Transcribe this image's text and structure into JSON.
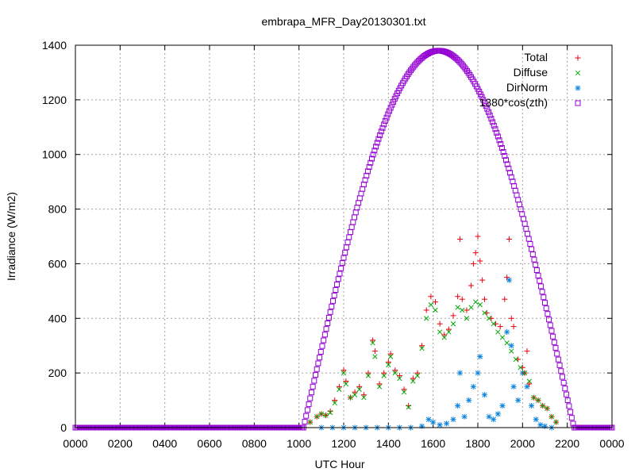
{
  "chart_data": {
    "type": "scatter",
    "title": "embrapa_MFR_Day20130301.txt",
    "xlabel": "UTC Hour",
    "ylabel": "Irradiance (W/m2)",
    "xlim": [
      0,
      24
    ],
    "ylim": [
      0,
      1400
    ],
    "grid": true,
    "legend_position": "top-right",
    "x_tick_labels": [
      "0000",
      "0200",
      "0400",
      "0600",
      "0800",
      "1000",
      "1200",
      "1400",
      "1600",
      "1800",
      "2000",
      "2200",
      "0000"
    ],
    "y_tick_labels": [
      "0",
      "200",
      "400",
      "600",
      "800",
      "1000",
      "1200",
      "1400"
    ],
    "series": [
      {
        "name": "Total",
        "marker": "plus",
        "color": "#e8000b",
        "points": [
          [
            10.5,
            20
          ],
          [
            10.8,
            40
          ],
          [
            11.0,
            50
          ],
          [
            11.2,
            45
          ],
          [
            11.4,
            60
          ],
          [
            11.6,
            100
          ],
          [
            11.8,
            150
          ],
          [
            12.0,
            210
          ],
          [
            12.1,
            170
          ],
          [
            12.3,
            110
          ],
          [
            12.5,
            130
          ],
          [
            12.7,
            150
          ],
          [
            12.9,
            120
          ],
          [
            13.1,
            200
          ],
          [
            13.3,
            320
          ],
          [
            13.4,
            280
          ],
          [
            13.6,
            160
          ],
          [
            13.8,
            200
          ],
          [
            14.0,
            240
          ],
          [
            14.1,
            270
          ],
          [
            14.3,
            210
          ],
          [
            14.5,
            190
          ],
          [
            14.7,
            140
          ],
          [
            14.9,
            80
          ],
          [
            15.1,
            180
          ],
          [
            15.3,
            200
          ],
          [
            15.5,
            300
          ],
          [
            15.7,
            430
          ],
          [
            15.9,
            480
          ],
          [
            16.1,
            460
          ],
          [
            16.3,
            380
          ],
          [
            16.5,
            340
          ],
          [
            16.7,
            360
          ],
          [
            16.9,
            410
          ],
          [
            17.1,
            480
          ],
          [
            17.2,
            690
          ],
          [
            17.3,
            470
          ],
          [
            17.5,
            430
          ],
          [
            17.7,
            520
          ],
          [
            17.8,
            600
          ],
          [
            17.9,
            640
          ],
          [
            18.0,
            700
          ],
          [
            18.1,
            610
          ],
          [
            18.2,
            540
          ],
          [
            18.3,
            470
          ],
          [
            18.4,
            420
          ],
          [
            18.6,
            400
          ],
          [
            18.8,
            380
          ],
          [
            19.0,
            370
          ],
          [
            19.2,
            470
          ],
          [
            19.3,
            550
          ],
          [
            19.4,
            690
          ],
          [
            19.5,
            400
          ],
          [
            19.6,
            370
          ],
          [
            19.8,
            250
          ],
          [
            20.0,
            220
          ],
          [
            20.1,
            200
          ],
          [
            20.2,
            280
          ],
          [
            20.3,
            160
          ],
          [
            20.5,
            110
          ],
          [
            20.7,
            100
          ],
          [
            20.9,
            80
          ],
          [
            21.1,
            70
          ],
          [
            21.3,
            40
          ],
          [
            21.5,
            20
          ]
        ]
      },
      {
        "name": "Diffuse",
        "marker": "cross",
        "color": "#00a600",
        "points": [
          [
            10.5,
            20
          ],
          [
            10.8,
            40
          ],
          [
            11.0,
            50
          ],
          [
            11.2,
            45
          ],
          [
            11.4,
            55
          ],
          [
            11.6,
            90
          ],
          [
            11.8,
            140
          ],
          [
            12.0,
            200
          ],
          [
            12.1,
            160
          ],
          [
            12.3,
            110
          ],
          [
            12.5,
            120
          ],
          [
            12.7,
            140
          ],
          [
            12.9,
            110
          ],
          [
            13.1,
            190
          ],
          [
            13.3,
            310
          ],
          [
            13.4,
            260
          ],
          [
            13.6,
            150
          ],
          [
            13.8,
            190
          ],
          [
            14.0,
            230
          ],
          [
            14.1,
            260
          ],
          [
            14.3,
            200
          ],
          [
            14.5,
            180
          ],
          [
            14.7,
            130
          ],
          [
            14.9,
            75
          ],
          [
            15.1,
            170
          ],
          [
            15.3,
            190
          ],
          [
            15.5,
            290
          ],
          [
            15.7,
            400
          ],
          [
            15.9,
            450
          ],
          [
            16.1,
            430
          ],
          [
            16.3,
            350
          ],
          [
            16.5,
            330
          ],
          [
            16.7,
            350
          ],
          [
            16.9,
            380
          ],
          [
            17.1,
            440
          ],
          [
            17.3,
            430
          ],
          [
            17.5,
            400
          ],
          [
            17.7,
            440
          ],
          [
            17.9,
            460
          ],
          [
            18.1,
            450
          ],
          [
            18.3,
            420
          ],
          [
            18.5,
            400
          ],
          [
            18.7,
            380
          ],
          [
            18.9,
            350
          ],
          [
            19.1,
            330
          ],
          [
            19.3,
            310
          ],
          [
            19.5,
            280
          ],
          [
            19.7,
            250
          ],
          [
            19.9,
            220
          ],
          [
            20.1,
            200
          ],
          [
            20.3,
            170
          ],
          [
            20.5,
            110
          ],
          [
            20.7,
            100
          ],
          [
            20.9,
            80
          ],
          [
            21.1,
            70
          ],
          [
            21.3,
            40
          ],
          [
            21.5,
            20
          ]
        ]
      },
      {
        "name": "DirNorm",
        "marker": "star",
        "color": "#0a84e0",
        "points": [
          [
            11.0,
            0
          ],
          [
            11.5,
            0
          ],
          [
            12.0,
            0
          ],
          [
            12.5,
            0
          ],
          [
            13.0,
            0
          ],
          [
            13.5,
            0
          ],
          [
            14.0,
            0
          ],
          [
            14.5,
            0
          ],
          [
            15.0,
            0
          ],
          [
            15.5,
            5
          ],
          [
            15.8,
            30
          ],
          [
            16.0,
            20
          ],
          [
            16.3,
            10
          ],
          [
            16.6,
            15
          ],
          [
            16.9,
            30
          ],
          [
            17.1,
            80
          ],
          [
            17.2,
            200
          ],
          [
            17.4,
            40
          ],
          [
            17.6,
            100
          ],
          [
            17.8,
            150
          ],
          [
            18.0,
            200
          ],
          [
            18.1,
            260
          ],
          [
            18.3,
            120
          ],
          [
            18.5,
            40
          ],
          [
            18.7,
            30
          ],
          [
            18.9,
            50
          ],
          [
            19.1,
            80
          ],
          [
            19.3,
            350
          ],
          [
            19.4,
            540
          ],
          [
            19.5,
            300
          ],
          [
            19.6,
            150
          ],
          [
            19.8,
            100
          ],
          [
            20.0,
            200
          ],
          [
            20.2,
            150
          ],
          [
            20.4,
            80
          ],
          [
            20.6,
            30
          ],
          [
            20.8,
            10
          ],
          [
            21.0,
            5
          ],
          [
            21.3,
            0
          ]
        ]
      },
      {
        "name": "1380*cos(zth)",
        "marker": "square",
        "color": "#9400d3",
        "curve": {
          "x_start": 10.2,
          "x_peak": 16.25,
          "x_end": 22.3,
          "peak": 1380,
          "flat_value": 0,
          "x_min": 0,
          "x_max": 24
        }
      }
    ]
  }
}
